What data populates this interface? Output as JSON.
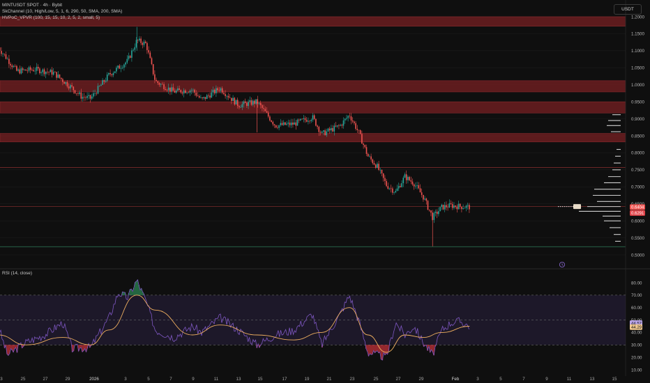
{
  "header": {
    "symbol_line": "MINTUSDT SPOT · 4h · Bybit",
    "indicator1": "SkChannel (10, High/Low, 5, 1, 6, 290, 50, SMA, 200, SMA)",
    "indicator2": "HVPoC_VPVR (100, 15, 15, 10, 2, 5, 2, small, 5)"
  },
  "currency_button": "USDT",
  "rsi_panel": {
    "label": "RSI (14, close)"
  },
  "colors": {
    "background": "#0f0f0f",
    "up_candle": "#26a69a",
    "down_candle": "#ef5350",
    "resistance_zone": "#6b1d20",
    "rsi_line": "#7e57c2",
    "rsi_ma": "#f0b060"
  },
  "chart_data": [
    {
      "type": "candlestick",
      "name": "MINTUSDT 4h",
      "x_axis_labels": [
        "3",
        "25",
        "27",
        "29",
        "2026",
        "3",
        "5",
        "7",
        "9",
        "11",
        "13",
        "15",
        "17",
        "19",
        "21",
        "23",
        "25",
        "27",
        "29",
        "Feb",
        "3",
        "5",
        "7",
        "9",
        "11",
        "13",
        "15"
      ],
      "y_axis": {
        "ticks": [
          "1.2000",
          "1.1500",
          "1.1000",
          "1.0500",
          "1.0000",
          "0.9500",
          "0.9000",
          "0.8500",
          "0.8000",
          "0.7500",
          "0.7000",
          "0.6500",
          "0.6000",
          "0.5500",
          "0.5000"
        ],
        "range": [
          0.49,
          1.21
        ]
      },
      "price_labels": {
        "current": "0.6404",
        "secondary": "0.6291"
      },
      "resistance_zones": [
        [
          1.172,
          1.2
        ],
        [
          0.979,
          1.012
        ],
        [
          0.917,
          0.95
        ],
        [
          0.832,
          0.857
        ]
      ],
      "horizontal_lines": [
        {
          "price": 0.757,
          "color": "#7a2a2a"
        },
        {
          "price": 0.642,
          "color": "#7a2a2a"
        },
        {
          "price": 0.524,
          "color": "#2f7d5a"
        }
      ],
      "price_path": [
        {
          "x": "Dec 22",
          "close": 1.11
        },
        {
          "x": "Dec 24",
          "close": 1.04
        },
        {
          "x": "Dec 26",
          "close": 1.045
        },
        {
          "x": "Dec 28",
          "close": 1.035
        },
        {
          "x": "Dec 30",
          "close": 0.99
        },
        {
          "x": "Dec 31",
          "close": 0.965
        },
        {
          "x": "Jan 1",
          "close": 0.96
        },
        {
          "x": "Jan 3",
          "close": 1.03
        },
        {
          "x": "Jan 5",
          "close": 1.07
        },
        {
          "x": "Jan 6",
          "close": 1.13
        },
        {
          "x": "Jan 7",
          "close": 1.12
        },
        {
          "x": "Jan 8",
          "close": 1.01
        },
        {
          "x": "Jan 10",
          "close": 0.98
        },
        {
          "x": "Jan 12",
          "close": 0.985
        },
        {
          "x": "Jan 13",
          "close": 0.955
        },
        {
          "x": "Jan 15",
          "close": 0.99
        },
        {
          "x": "Jan 17",
          "close": 0.94
        },
        {
          "x": "Jan 19",
          "close": 0.95
        },
        {
          "x": "Jan 20",
          "close": 0.915
        },
        {
          "x": "Jan 21",
          "close": 0.88
        },
        {
          "x": "Jan 23",
          "close": 0.885
        },
        {
          "x": "Jan 25",
          "close": 0.905
        },
        {
          "x": "Jan 26",
          "close": 0.855
        },
        {
          "x": "Jan 28",
          "close": 0.88
        },
        {
          "x": "Jan 29",
          "close": 0.912
        },
        {
          "x": "Jan 30",
          "close": 0.86
        },
        {
          "x": "Jan 31",
          "close": 0.79
        },
        {
          "x": "Feb 1",
          "close": 0.76
        },
        {
          "x": "Feb 2",
          "close": 0.705
        },
        {
          "x": "Feb 3",
          "close": 0.685
        },
        {
          "x": "Feb 4",
          "close": 0.73
        },
        {
          "x": "Feb 5",
          "close": 0.71
        },
        {
          "x": "Feb 6",
          "close": 0.67
        },
        {
          "x": "Feb 7",
          "close": 0.61
        },
        {
          "x": "Feb 8",
          "close": 0.64
        },
        {
          "x": "Feb 9",
          "close": 0.645
        },
        {
          "x": "Feb 10",
          "close": 0.642
        },
        {
          "x": "Feb 11",
          "close": 0.641
        }
      ]
    },
    {
      "type": "line",
      "name": "RSI (14, close)",
      "y_axis": {
        "ticks": [
          "80.00",
          "70.00",
          "60.00",
          "50.00",
          "40.00",
          "30.00",
          "20.00",
          "10.00"
        ],
        "range": [
          6,
          84
        ]
      },
      "bands": {
        "upper": 70,
        "middle": 50,
        "lower": 30
      },
      "current_labels": [
        "44.57",
        "44.29"
      ],
      "rsi": [
        {
          "x": "Dec 22",
          "value": 45
        },
        {
          "x": "Dec 23",
          "value": 22
        },
        {
          "x": "Dec 25",
          "value": 32
        },
        {
          "x": "Dec 27",
          "value": 38
        },
        {
          "x": "Dec 29",
          "value": 48
        },
        {
          "x": "Dec 30",
          "value": 27
        },
        {
          "x": "Jan 1",
          "value": 28
        },
        {
          "x": "Jan 3",
          "value": 52
        },
        {
          "x": "Jan 4",
          "value": 72
        },
        {
          "x": "Jan 5",
          "value": 68
        },
        {
          "x": "Jan 6",
          "value": 82
        },
        {
          "x": "Jan 7",
          "value": 65
        },
        {
          "x": "Jan 8",
          "value": 42
        },
        {
          "x": "Jan 10",
          "value": 36
        },
        {
          "x": "Jan 12",
          "value": 45
        },
        {
          "x": "Jan 13",
          "value": 40
        },
        {
          "x": "Jan 15",
          "value": 52
        },
        {
          "x": "Jan 17",
          "value": 42
        },
        {
          "x": "Jan 19",
          "value": 30
        },
        {
          "x": "Jan 21",
          "value": 38
        },
        {
          "x": "Jan 23",
          "value": 42
        },
        {
          "x": "Jan 25",
          "value": 55
        },
        {
          "x": "Jan 26",
          "value": 30
        },
        {
          "x": "Jan 28",
          "value": 55
        },
        {
          "x": "Jan 29",
          "value": 70
        },
        {
          "x": "Jan 30",
          "value": 50
        },
        {
          "x": "Jan 31",
          "value": 24
        },
        {
          "x": "Feb 2",
          "value": 20
        },
        {
          "x": "Feb 3",
          "value": 48
        },
        {
          "x": "Feb 4",
          "value": 38
        },
        {
          "x": "Feb 5",
          "value": 45
        },
        {
          "x": "Feb 6",
          "value": 32
        },
        {
          "x": "Feb 7",
          "value": 22
        },
        {
          "x": "Feb 8",
          "value": 42
        },
        {
          "x": "Feb 9",
          "value": 48
        },
        {
          "x": "Feb 10",
          "value": 49
        },
        {
          "x": "Feb 11",
          "value": 45
        }
      ],
      "rsi_ma": [
        {
          "x": "Dec 22",
          "value": 38
        },
        {
          "x": "Dec 25",
          "value": 30
        },
        {
          "x": "Dec 29",
          "value": 36
        },
        {
          "x": "Jan 1",
          "value": 30
        },
        {
          "x": "Jan 3",
          "value": 42
        },
        {
          "x": "Jan 6",
          "value": 70
        },
        {
          "x": "Jan 8",
          "value": 58
        },
        {
          "x": "Jan 12",
          "value": 38
        },
        {
          "x": "Jan 15",
          "value": 46
        },
        {
          "x": "Jan 19",
          "value": 38
        },
        {
          "x": "Jan 23",
          "value": 34
        },
        {
          "x": "Jan 26",
          "value": 40
        },
        {
          "x": "Jan 29",
          "value": 60
        },
        {
          "x": "Jan 31",
          "value": 38
        },
        {
          "x": "Feb 2",
          "value": 24
        },
        {
          "x": "Feb 4",
          "value": 38
        },
        {
          "x": "Feb 6",
          "value": 36
        },
        {
          "x": "Feb 8",
          "value": 40
        },
        {
          "x": "Feb 11",
          "value": 45
        }
      ]
    }
  ]
}
